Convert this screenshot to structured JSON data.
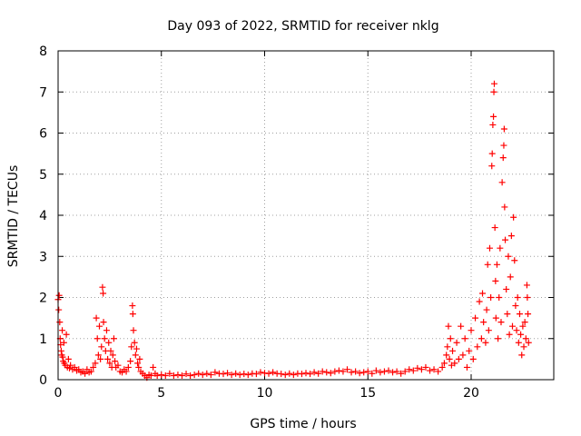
{
  "chart_data": {
    "type": "scatter",
    "title": "Day 093 of 2022, SRMTID for receiver nklg",
    "xlabel": "GPS time / hours",
    "ylabel": "SRMTID / TECUs",
    "xlim": [
      0,
      24
    ],
    "ylim": [
      0,
      8
    ],
    "xticks": [
      0,
      5,
      10,
      15,
      20
    ],
    "yticks": [
      0,
      1,
      2,
      3,
      4,
      5,
      6,
      7,
      8
    ],
    "grid": true,
    "marker": "+",
    "color": "#ff0000",
    "series": [
      {
        "name": "SRMTID",
        "points": [
          [
            0.0,
            1.95
          ],
          [
            0.03,
            1.7
          ],
          [
            0.05,
            2.05
          ],
          [
            0.08,
            1.4
          ],
          [
            0.1,
            1.0
          ],
          [
            0.12,
            0.85
          ],
          [
            0.15,
            0.7
          ],
          [
            0.18,
            0.6
          ],
          [
            0.2,
            1.2
          ],
          [
            0.22,
            0.55
          ],
          [
            0.25,
            0.45
          ],
          [
            0.28,
            0.9
          ],
          [
            0.3,
            0.4
          ],
          [
            0.35,
            0.35
          ],
          [
            0.4,
            1.1
          ],
          [
            0.45,
            0.3
          ],
          [
            0.5,
            0.5
          ],
          [
            0.55,
            0.28
          ],
          [
            0.6,
            0.35
          ],
          [
            0.7,
            0.25
          ],
          [
            0.8,
            0.3
          ],
          [
            0.9,
            0.22
          ],
          [
            1.0,
            0.25
          ],
          [
            1.1,
            0.18
          ],
          [
            1.2,
            0.2
          ],
          [
            1.3,
            0.15
          ],
          [
            1.4,
            0.25
          ],
          [
            1.5,
            0.18
          ],
          [
            1.6,
            0.2
          ],
          [
            1.7,
            0.3
          ],
          [
            1.8,
            0.4
          ],
          [
            1.85,
            1.5
          ],
          [
            1.9,
            1.0
          ],
          [
            1.95,
            0.6
          ],
          [
            2.0,
            1.3
          ],
          [
            2.05,
            0.5
          ],
          [
            2.1,
            0.8
          ],
          [
            2.15,
            2.25
          ],
          [
            2.18,
            2.1
          ],
          [
            2.2,
            1.4
          ],
          [
            2.25,
            1.0
          ],
          [
            2.3,
            0.7
          ],
          [
            2.35,
            1.2
          ],
          [
            2.4,
            0.5
          ],
          [
            2.45,
            0.9
          ],
          [
            2.5,
            0.4
          ],
          [
            2.55,
            0.7
          ],
          [
            2.6,
            0.3
          ],
          [
            2.65,
            0.6
          ],
          [
            2.7,
            1.0
          ],
          [
            2.75,
            0.45
          ],
          [
            2.8,
            0.3
          ],
          [
            2.9,
            0.35
          ],
          [
            3.0,
            0.2
          ],
          [
            3.1,
            0.18
          ],
          [
            3.2,
            0.25
          ],
          [
            3.3,
            0.2
          ],
          [
            3.4,
            0.3
          ],
          [
            3.5,
            0.45
          ],
          [
            3.55,
            0.8
          ],
          [
            3.6,
            1.8
          ],
          [
            3.62,
            1.6
          ],
          [
            3.65,
            1.2
          ],
          [
            3.7,
            0.9
          ],
          [
            3.75,
            0.6
          ],
          [
            3.8,
            0.75
          ],
          [
            3.85,
            0.4
          ],
          [
            3.9,
            0.3
          ],
          [
            3.95,
            0.5
          ],
          [
            4.0,
            0.2
          ],
          [
            4.1,
            0.15
          ],
          [
            4.2,
            0.1
          ],
          [
            4.3,
            0.05
          ],
          [
            4.4,
            0.12
          ],
          [
            4.5,
            0.1
          ],
          [
            4.6,
            0.3
          ],
          [
            4.7,
            0.15
          ],
          [
            4.8,
            0.1
          ],
          [
            5.0,
            0.12
          ],
          [
            5.2,
            0.1
          ],
          [
            5.4,
            0.15
          ],
          [
            5.6,
            0.1
          ],
          [
            5.8,
            0.12
          ],
          [
            6.0,
            0.1
          ],
          [
            6.2,
            0.14
          ],
          [
            6.4,
            0.1
          ],
          [
            6.6,
            0.12
          ],
          [
            6.8,
            0.15
          ],
          [
            7.0,
            0.12
          ],
          [
            7.2,
            0.15
          ],
          [
            7.4,
            0.12
          ],
          [
            7.6,
            0.18
          ],
          [
            7.8,
            0.15
          ],
          [
            8.0,
            0.14
          ],
          [
            8.2,
            0.16
          ],
          [
            8.4,
            0.12
          ],
          [
            8.6,
            0.15
          ],
          [
            8.8,
            0.12
          ],
          [
            9.0,
            0.14
          ],
          [
            9.2,
            0.12
          ],
          [
            9.4,
            0.15
          ],
          [
            9.6,
            0.14
          ],
          [
            9.8,
            0.18
          ],
          [
            10.0,
            0.16
          ],
          [
            10.2,
            0.15
          ],
          [
            10.4,
            0.18
          ],
          [
            10.6,
            0.15
          ],
          [
            10.8,
            0.14
          ],
          [
            11.0,
            0.12
          ],
          [
            11.2,
            0.15
          ],
          [
            11.4,
            0.12
          ],
          [
            11.6,
            0.15
          ],
          [
            11.8,
            0.14
          ],
          [
            12.0,
            0.16
          ],
          [
            12.2,
            0.14
          ],
          [
            12.4,
            0.18
          ],
          [
            12.6,
            0.15
          ],
          [
            12.8,
            0.2
          ],
          [
            13.0,
            0.18
          ],
          [
            13.2,
            0.16
          ],
          [
            13.4,
            0.2
          ],
          [
            13.6,
            0.22
          ],
          [
            13.8,
            0.2
          ],
          [
            14.0,
            0.25
          ],
          [
            14.2,
            0.18
          ],
          [
            14.4,
            0.2
          ],
          [
            14.6,
            0.16
          ],
          [
            14.8,
            0.18
          ],
          [
            15.0,
            0.2
          ],
          [
            15.2,
            0.15
          ],
          [
            15.4,
            0.22
          ],
          [
            15.6,
            0.18
          ],
          [
            15.8,
            0.2
          ],
          [
            16.0,
            0.22
          ],
          [
            16.2,
            0.18
          ],
          [
            16.4,
            0.2
          ],
          [
            16.6,
            0.15
          ],
          [
            16.8,
            0.2
          ],
          [
            17.0,
            0.25
          ],
          [
            17.2,
            0.22
          ],
          [
            17.4,
            0.28
          ],
          [
            17.6,
            0.25
          ],
          [
            17.8,
            0.3
          ],
          [
            18.0,
            0.22
          ],
          [
            18.2,
            0.25
          ],
          [
            18.4,
            0.2
          ],
          [
            18.6,
            0.3
          ],
          [
            18.7,
            0.4
          ],
          [
            18.8,
            0.6
          ],
          [
            18.85,
            0.8
          ],
          [
            18.9,
            1.3
          ],
          [
            18.95,
            0.5
          ],
          [
            19.0,
            1.0
          ],
          [
            19.05,
            0.35
          ],
          [
            19.1,
            0.7
          ],
          [
            19.2,
            0.4
          ],
          [
            19.3,
            0.9
          ],
          [
            19.4,
            0.5
          ],
          [
            19.5,
            1.3
          ],
          [
            19.6,
            0.6
          ],
          [
            19.7,
            1.0
          ],
          [
            19.8,
            0.3
          ],
          [
            19.9,
            0.7
          ],
          [
            20.0,
            1.2
          ],
          [
            20.1,
            0.5
          ],
          [
            20.2,
            1.5
          ],
          [
            20.3,
            0.8
          ],
          [
            20.4,
            1.9
          ],
          [
            20.5,
            1.0
          ],
          [
            20.55,
            2.1
          ],
          [
            20.6,
            1.4
          ],
          [
            20.7,
            0.9
          ],
          [
            20.75,
            1.7
          ],
          [
            20.8,
            2.8
          ],
          [
            20.85,
            1.2
          ],
          [
            20.9,
            3.2
          ],
          [
            20.95,
            2.0
          ],
          [
            21.0,
            5.2
          ],
          [
            21.02,
            5.5
          ],
          [
            21.05,
            6.2
          ],
          [
            21.08,
            6.4
          ],
          [
            21.1,
            7.0
          ],
          [
            21.12,
            7.2
          ],
          [
            21.15,
            3.7
          ],
          [
            21.18,
            2.4
          ],
          [
            21.2,
            1.5
          ],
          [
            21.25,
            2.8
          ],
          [
            21.3,
            1.0
          ],
          [
            21.35,
            2.0
          ],
          [
            21.4,
            3.2
          ],
          [
            21.45,
            1.4
          ],
          [
            21.5,
            4.8
          ],
          [
            21.55,
            5.4
          ],
          [
            21.58,
            5.7
          ],
          [
            21.6,
            6.1
          ],
          [
            21.62,
            4.2
          ],
          [
            21.65,
            3.4
          ],
          [
            21.7,
            2.2
          ],
          [
            21.75,
            1.6
          ],
          [
            21.8,
            3.0
          ],
          [
            21.85,
            1.1
          ],
          [
            21.9,
            2.5
          ],
          [
            21.95,
            3.5
          ],
          [
            22.0,
            1.3
          ],
          [
            22.05,
            3.95
          ],
          [
            22.1,
            2.9
          ],
          [
            22.15,
            1.8
          ],
          [
            22.2,
            1.2
          ],
          [
            22.25,
            2.0
          ],
          [
            22.3,
            0.9
          ],
          [
            22.35,
            1.6
          ],
          [
            22.4,
            1.1
          ],
          [
            22.45,
            0.6
          ],
          [
            22.5,
            1.3
          ],
          [
            22.55,
            0.8
          ],
          [
            22.6,
            1.4
          ],
          [
            22.65,
            1.0
          ],
          [
            22.7,
            2.3
          ],
          [
            22.72,
            2.0
          ],
          [
            22.75,
            1.6
          ],
          [
            22.78,
            0.9
          ]
        ]
      }
    ]
  }
}
